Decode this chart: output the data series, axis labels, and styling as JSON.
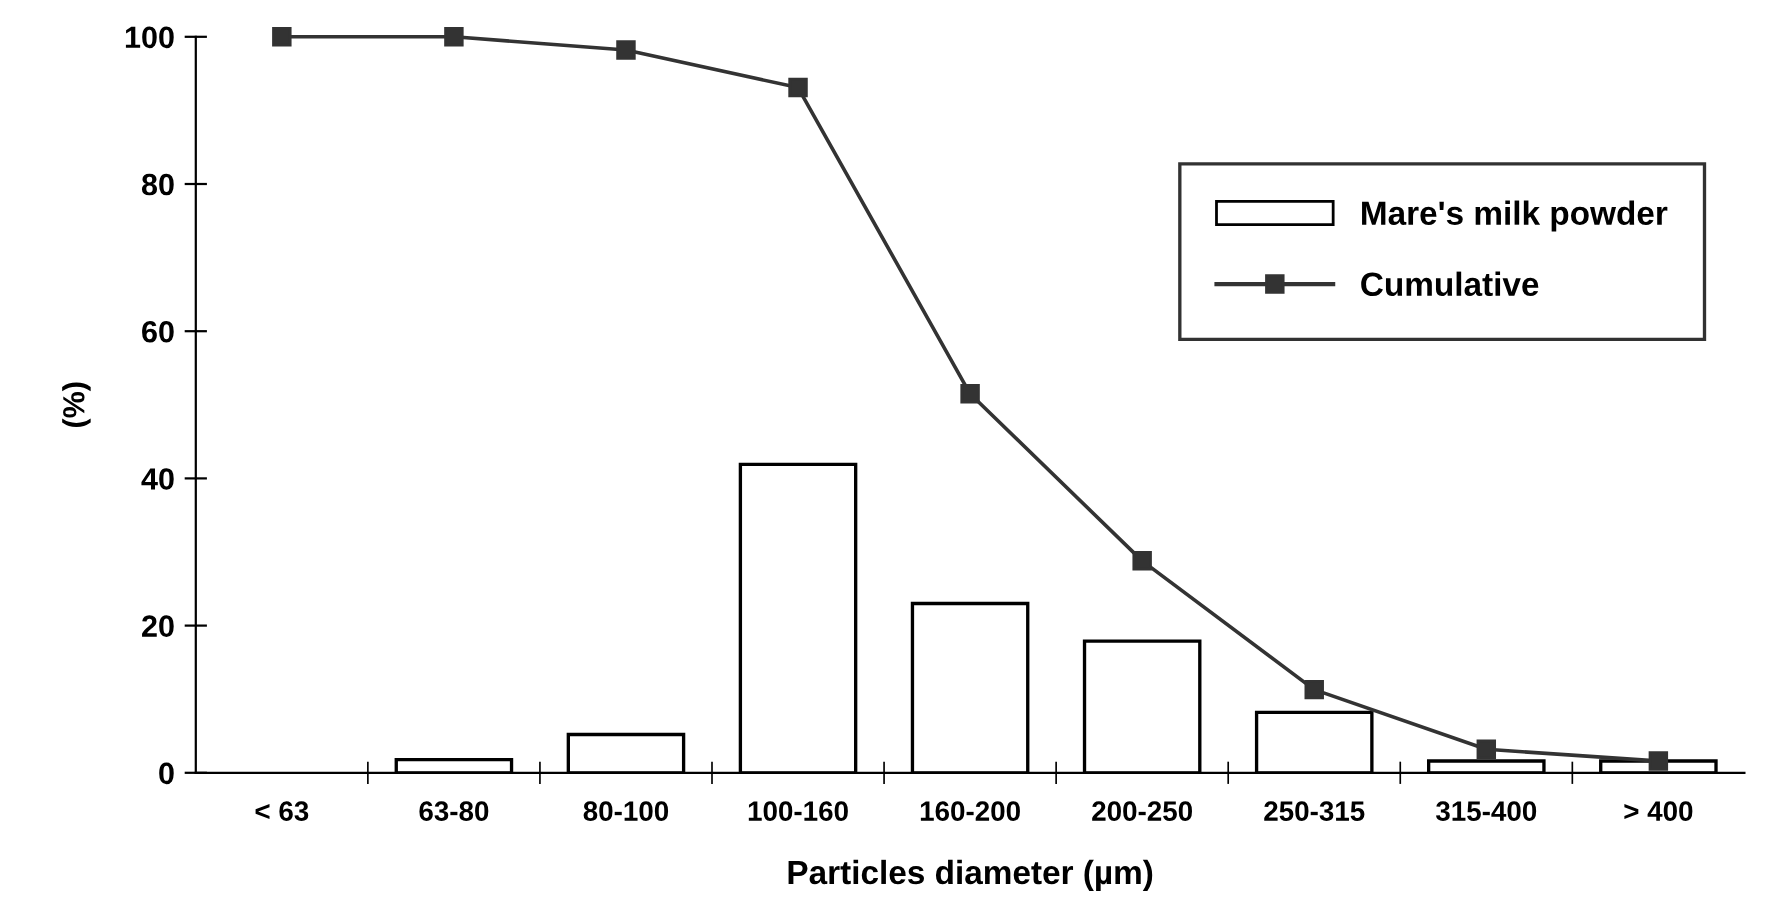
{
  "chart_data": {
    "type": "bar",
    "xlabel": "Particles diameter (µm)",
    "ylabel": "(%)",
    "categories": [
      "< 63",
      "63-80",
      "80-100",
      "100-160",
      "160-200",
      "200-250",
      "250-315",
      "315-400",
      "> 400"
    ],
    "series": [
      {
        "name": "Mare's milk powder",
        "color": "#ffffff",
        "values": [
          null,
          1.8,
          5.2,
          41.9,
          23.0,
          17.9,
          8.2,
          1.6,
          1.6
        ]
      },
      {
        "name": "Cumulative",
        "type": "line",
        "color": "#333333",
        "marker": "square",
        "line_style": "solid",
        "values": [
          100,
          100,
          98.2,
          93.1,
          51.5,
          28.8,
          11.3,
          3.2,
          1.6
        ]
      }
    ],
    "ylim": [
      0,
      100
    ],
    "yticks": [
      0,
      20,
      40,
      60,
      80,
      100
    ],
    "grid": false,
    "legend": "top right"
  }
}
